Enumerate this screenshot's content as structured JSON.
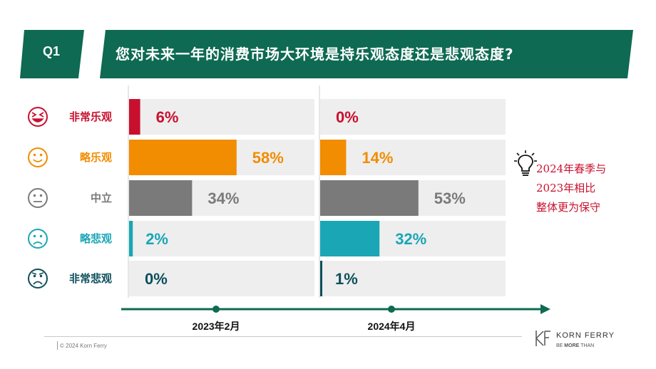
{
  "header": {
    "question_number": "Q1",
    "question": "您对未来一年的消费市场大环境是持乐观态度还是悲观态度?"
  },
  "colors": {
    "banner": "#0e6a52",
    "axis": "#0e6a52",
    "panel": "#eeeeee"
  },
  "chart_data": {
    "type": "bar",
    "orientation": "horizontal",
    "categories": [
      "非常乐观",
      "略乐观",
      "中立",
      "略悲观",
      "非常悲观"
    ],
    "category_icons": [
      "laughing-face-icon",
      "smiling-face-icon",
      "neutral-face-icon",
      "frowning-face-icon",
      "sad-face-icon"
    ],
    "category_colors": [
      "#c8102e",
      "#f28c00",
      "#7a7a7a",
      "#1aa6b5",
      "#0d4f5c"
    ],
    "series": [
      {
        "name": "2023年2月",
        "values": [
          6,
          58,
          34,
          2,
          0
        ],
        "labels": [
          "6%",
          "58%",
          "34%",
          "2%",
          "0%"
        ]
      },
      {
        "name": "2024年4月",
        "values": [
          0,
          14,
          53,
          32,
          1
        ],
        "labels": [
          "0%",
          "14%",
          "53%",
          "32%",
          "1%"
        ]
      }
    ],
    "unit": "%",
    "xlim": [
      0,
      100
    ],
    "grid": false,
    "legend": "none"
  },
  "annotation": {
    "lines": [
      "2024年春季与",
      "2023年相比",
      "整体更为保守"
    ],
    "icon": "lightbulb-icon"
  },
  "footer": {
    "copyright": "© 2024 Korn Ferry",
    "brand_name": "KORN FERRY",
    "tagline_prefix": "BE ",
    "tagline_bold": "MORE",
    "tagline_suffix": " THAN"
  }
}
